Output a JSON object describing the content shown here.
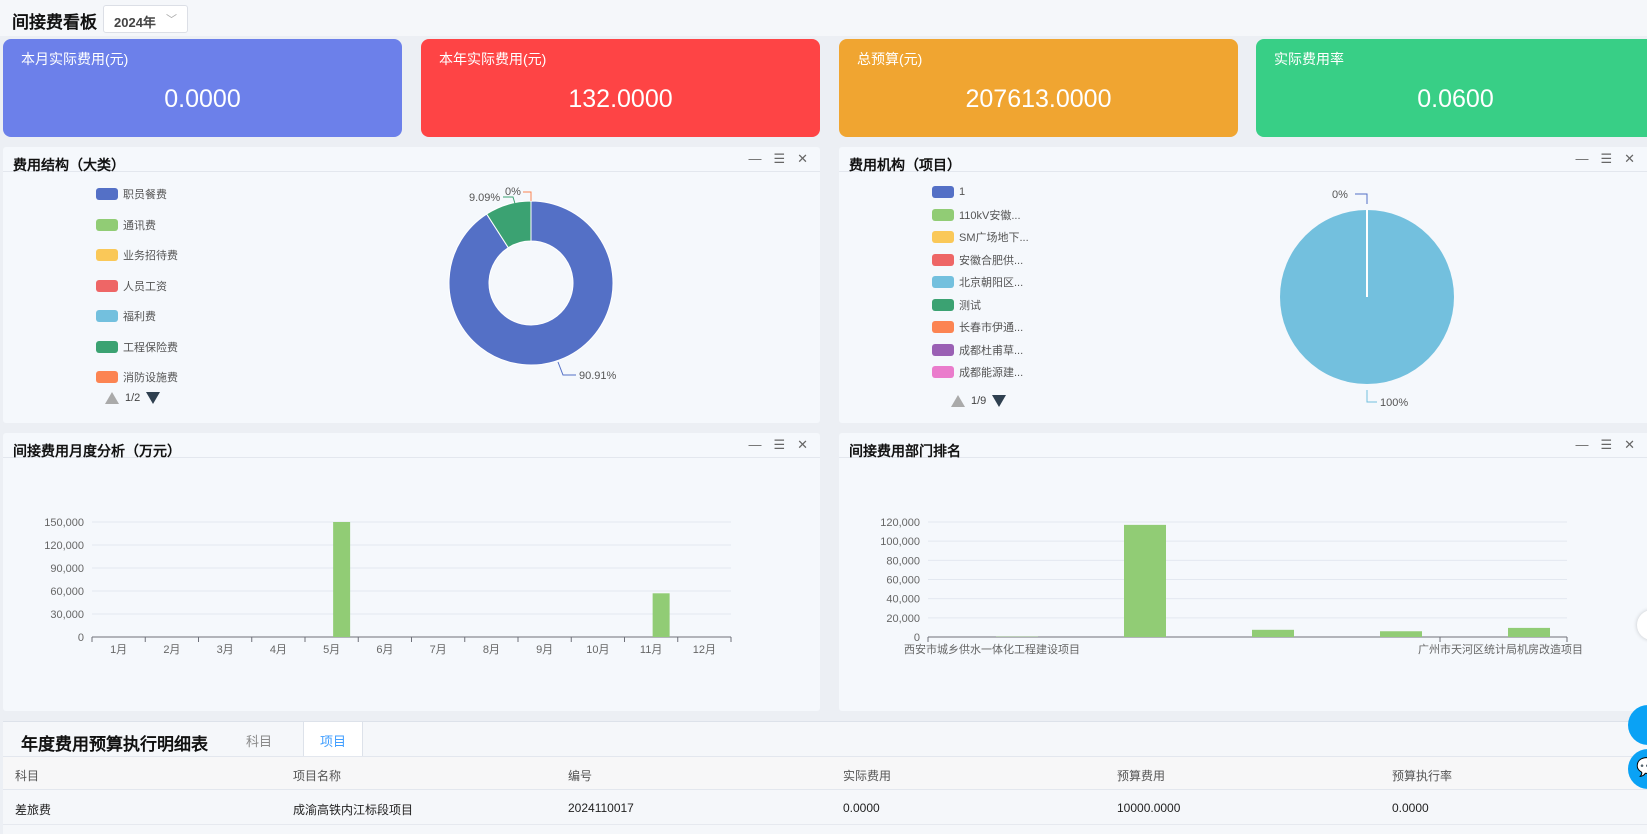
{
  "header": {
    "title": "间接费看板",
    "year": "2024年"
  },
  "cards": [
    {
      "label": "本月实际费用(元)",
      "value": "0.0000",
      "color": "#6c80ea"
    },
    {
      "label": "本年实际费用(元)",
      "value": "132.0000",
      "color": "#fe4445"
    },
    {
      "label": "总预算(元)",
      "value": "207613.0000",
      "color": "#f0a531"
    },
    {
      "label": "实际费用率",
      "value": "0.0600",
      "color": "#38cf86"
    }
  ],
  "panel_controls": {
    "minimize": "—",
    "menu": "☰",
    "close": "✕"
  },
  "panels": {
    "structure": {
      "title": "费用结构（大类）",
      "page": "1/2"
    },
    "org": {
      "title": "费用机构（项目）",
      "page": "1/9"
    },
    "monthly": {
      "title": "间接费用月度分析（万元）"
    },
    "dept": {
      "title": "间接费用部门排名"
    }
  },
  "chart_data": [
    {
      "type": "pie",
      "variant": "donut",
      "legend_placement": "left",
      "series": [
        {
          "name": "职员餐费",
          "color": "#5470c6",
          "percent": 90.91,
          "label": "90.91%"
        },
        {
          "name": "通讯费",
          "color": "#91cc75"
        },
        {
          "name": "业务招待费",
          "color": "#fac858"
        },
        {
          "name": "人员工资",
          "color": "#ee6666"
        },
        {
          "name": "福利费",
          "color": "#73c0de"
        },
        {
          "name": "工程保险费",
          "color": "#3ba272",
          "percent": 9.09,
          "label": "9.09%"
        },
        {
          "name": "消防设施费",
          "color": "#fc8452",
          "percent": 0,
          "label": "0%"
        }
      ]
    },
    {
      "type": "pie",
      "legend_placement": "left",
      "series": [
        {
          "name": "1",
          "color": "#5470c6",
          "percent": 0,
          "label": "0%"
        },
        {
          "name": "110kV安徽...",
          "color": "#91cc75"
        },
        {
          "name": "SM广场地下...",
          "color": "#fac858"
        },
        {
          "name": "安徽合肥供...",
          "color": "#ee6666"
        },
        {
          "name": "北京朝阳区...",
          "color": "#73c0de",
          "percent": 100,
          "label": "100%"
        },
        {
          "name": "测试",
          "color": "#3ba272"
        },
        {
          "name": "长春市伊通...",
          "color": "#fc8452"
        },
        {
          "name": "成都杜甫草...",
          "color": "#9a60b4"
        },
        {
          "name": "成都能源建...",
          "color": "#ea7ccc"
        }
      ]
    },
    {
      "type": "bar",
      "categories": [
        "1月",
        "2月",
        "3月",
        "4月",
        "5月",
        "6月",
        "7月",
        "8月",
        "9月",
        "10月",
        "11月",
        "12月"
      ],
      "values": [
        0,
        0,
        0,
        0,
        150000,
        0,
        0,
        0,
        0,
        0,
        57000,
        0
      ],
      "ylim": [
        0,
        150000
      ],
      "yticks": [
        "0",
        "30,000",
        "60,000",
        "90,000",
        "120,000",
        "150,000"
      ],
      "grid": true,
      "color": "#91cc75"
    },
    {
      "type": "bar",
      "categories": [
        "西安市城乡供水一体化工程建设项目",
        "",
        "",
        "",
        "广州市天河区统计局机房改造项目"
      ],
      "values": [
        300,
        117000,
        7500,
        6000,
        9500
      ],
      "ylim": [
        0,
        120000
      ],
      "yticks": [
        "0",
        "20,000",
        "40,000",
        "60,000",
        "80,000",
        "100,000",
        "120,000"
      ],
      "grid": true,
      "color": "#91cc75"
    }
  ],
  "table": {
    "title": "年度费用预算执行明细表",
    "tabs": [
      "科目",
      "项目"
    ],
    "active_tab": "项目",
    "columns": [
      "科目",
      "项目名称",
      "编号",
      "实际费用",
      "预算费用",
      "预算执行率"
    ],
    "rows": [
      [
        "差旅费",
        "成渝高铁内江标段项目",
        "2024110017",
        "0.0000",
        "10000.0000",
        "0.0000"
      ]
    ]
  }
}
